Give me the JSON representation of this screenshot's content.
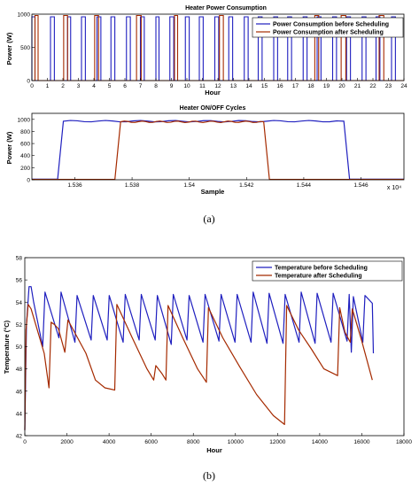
{
  "figure": {
    "caption_a": "(a)",
    "caption_b": "(b)"
  },
  "chart_data": [
    {
      "type": "line",
      "title": "Heater Power Consumption",
      "xlabel": "Hour",
      "ylabel": "Power (W)",
      "xlim": [
        0,
        24
      ],
      "ylim": [
        0,
        1000
      ],
      "xticks": [
        "0",
        "1",
        "2",
        "3",
        "4",
        "5",
        "6",
        "7",
        "8",
        "9",
        "10",
        "11",
        "12",
        "13",
        "14",
        "15",
        "16",
        "17",
        "18",
        "19",
        "20",
        "21",
        "22",
        "23",
        "24"
      ],
      "yticks": [
        "0",
        "500",
        "1000"
      ],
      "legend_position": "top-right",
      "series": [
        {
          "name": "Power Consumption before Scheduling",
          "color": "#1f1fbf",
          "on_intervals": [
            [
              0.0,
              0.2
            ],
            [
              1.2,
              1.45
            ],
            [
              2.3,
              2.5
            ],
            [
              3.2,
              3.45
            ],
            [
              4.2,
              4.45
            ],
            [
              5.1,
              5.35
            ],
            [
              6.1,
              6.35
            ],
            [
              7.0,
              7.25
            ],
            [
              8.0,
              8.2
            ],
            [
              8.9,
              9.15
            ],
            [
              9.9,
              10.15
            ],
            [
              10.8,
              11.05
            ],
            [
              11.8,
              12.05
            ],
            [
              12.7,
              12.95
            ],
            [
              13.7,
              13.95
            ],
            [
              14.6,
              14.85
            ],
            [
              15.6,
              15.85
            ],
            [
              16.5,
              16.75
            ],
            [
              17.5,
              17.75
            ],
            [
              18.4,
              18.65
            ],
            [
              19.4,
              19.65
            ],
            [
              20.3,
              20.55
            ],
            [
              21.3,
              21.55
            ],
            [
              22.2,
              22.45
            ],
            [
              23.2,
              23.45
            ]
          ],
          "on_level": 960
        },
        {
          "name": "Power Consumption after Scheduling",
          "color": "#a52a00",
          "on_intervals": [
            [
              0.2,
              0.4
            ],
            [
              2.05,
              2.3
            ],
            [
              4.05,
              4.3
            ],
            [
              6.75,
              7.05
            ],
            [
              9.2,
              9.4
            ],
            [
              12.1,
              12.35
            ],
            [
              18.25,
              18.5
            ],
            [
              19.95,
              20.25
            ],
            [
              22.4,
              22.7
            ]
          ],
          "on_level": 980
        }
      ]
    },
    {
      "type": "line",
      "title": "Heater ON/OFF Cycles",
      "xlabel": "Sample",
      "ylabel": "Power (W)",
      "x_multiplier": "x 10⁴",
      "xlim": [
        1.5345,
        1.5475
      ],
      "ylim": [
        0,
        1100
      ],
      "xticks": [
        "1.536",
        "1.538",
        "1.54",
        "1.542",
        "1.544",
        "1.546"
      ],
      "yticks": [
        "0",
        "200",
        "400",
        "600",
        "800",
        "1000"
      ],
      "series": [
        {
          "name": "Power Consumption before Scheduling",
          "color": "#1f1fbf",
          "x": [
            1.5345,
            1.5354,
            1.5356,
            1.5454,
            1.5456,
            1.5475
          ],
          "y": [
            10,
            10,
            970,
            970,
            10,
            10
          ]
        },
        {
          "name": "Power Consumption after Scheduling",
          "color": "#a52a00",
          "x": [
            1.5345,
            1.5374,
            1.5376,
            1.5426,
            1.5428,
            1.5475
          ],
          "y": [
            5,
            5,
            960,
            960,
            5,
            5
          ]
        }
      ]
    },
    {
      "type": "line",
      "xlabel": "Hour",
      "ylabel": "Temperature (°C)",
      "xlim": [
        0,
        18000
      ],
      "ylim": [
        42,
        58
      ],
      "xticks": [
        "0",
        "2000",
        "4000",
        "6000",
        "8000",
        "10000",
        "12000",
        "14000",
        "16000",
        "18000"
      ],
      "yticks": [
        "42",
        "44",
        "46",
        "48",
        "50",
        "52",
        "54",
        "56",
        "58"
      ],
      "legend_position": "top-right",
      "series": [
        {
          "name": "Temperature before Scheduling",
          "color": "#1f1fbf",
          "points": [
            [
              0,
              42.5
            ],
            [
              80,
              52
            ],
            [
              200,
              55.4
            ],
            [
              300,
              55.4
            ],
            [
              420,
              54.0
            ],
            [
              850,
              50.0
            ],
            [
              960,
              54.9
            ],
            [
              1620,
              50.8
            ],
            [
              1720,
              54.9
            ],
            [
              2380,
              50.4
            ],
            [
              2480,
              54.6
            ],
            [
              3150,
              50.6
            ],
            [
              3250,
              54.6
            ],
            [
              3910,
              50.6
            ],
            [
              4010,
              54.6
            ],
            [
              4670,
              50.4
            ],
            [
              4770,
              54.7
            ],
            [
              5430,
              50.6
            ],
            [
              5530,
              54.7
            ],
            [
              6190,
              50.6
            ],
            [
              6290,
              54.6
            ],
            [
              6950,
              50.2
            ],
            [
              7050,
              54.7
            ],
            [
              7700,
              50.6
            ],
            [
              7800,
              54.6
            ],
            [
              8460,
              50.4
            ],
            [
              8560,
              54.7
            ],
            [
              9220,
              50.5
            ],
            [
              9320,
              54.7
            ],
            [
              9980,
              50.4
            ],
            [
              10080,
              54.7
            ],
            [
              10740,
              50.4
            ],
            [
              10840,
              54.9
            ],
            [
              11500,
              50.3
            ],
            [
              11600,
              54.8
            ],
            [
              12260,
              50.3
            ],
            [
              12360,
              54.7
            ],
            [
              13020,
              50.4
            ],
            [
              13120,
              54.9
            ],
            [
              13780,
              50.3
            ],
            [
              13880,
              54.8
            ],
            [
              14540,
              50.4
            ],
            [
              14640,
              54.8
            ],
            [
              15300,
              50.5
            ],
            [
              15400,
              54.7
            ],
            [
              15500,
              49.5
            ],
            [
              15600,
              54.5
            ],
            [
              16050,
              50.4
            ],
            [
              16150,
              54.6
            ],
            [
              16500,
              53.9
            ],
            [
              16550,
              49.4
            ]
          ]
        },
        {
          "name": "Temperature after Scheduling",
          "color": "#a52a00",
          "points": [
            [
              0,
              42.5
            ],
            [
              60,
              51.5
            ],
            [
              160,
              53.8
            ],
            [
              300,
              53.4
            ],
            [
              920,
              49.4
            ],
            [
              1150,
              46.3
            ],
            [
              1250,
              52.2
            ],
            [
              1400,
              52.0
            ],
            [
              1600,
              51.6
            ],
            [
              1900,
              49.5
            ],
            [
              2050,
              52.4
            ],
            [
              2900,
              49.4
            ],
            [
              3350,
              47.0
            ],
            [
              3800,
              46.3
            ],
            [
              4270,
              46.1
            ],
            [
              4370,
              53.8
            ],
            [
              5100,
              50.8
            ],
            [
              5800,
              48.0
            ],
            [
              6120,
              47.0
            ],
            [
              6220,
              48.3
            ],
            [
              6500,
              47.6
            ],
            [
              6700,
              47.0
            ],
            [
              6800,
              53.7
            ],
            [
              7500,
              50.8
            ],
            [
              8200,
              48.0
            ],
            [
              8620,
              46.8
            ],
            [
              8720,
              53.5
            ],
            [
              9400,
              50.8
            ],
            [
              10200,
              48.2
            ],
            [
              11000,
              45.7
            ],
            [
              11800,
              43.8
            ],
            [
              12330,
              43.0
            ],
            [
              12430,
              53.7
            ],
            [
              13000,
              51.5
            ],
            [
              13600,
              49.8
            ],
            [
              14200,
              48.0
            ],
            [
              14850,
              47.4
            ],
            [
              14950,
              53.5
            ],
            [
              15200,
              51.3
            ],
            [
              15450,
              50.4
            ],
            [
              15550,
              53.4
            ],
            [
              16000,
              50.5
            ],
            [
              16500,
              47.0
            ]
          ]
        }
      ]
    }
  ]
}
